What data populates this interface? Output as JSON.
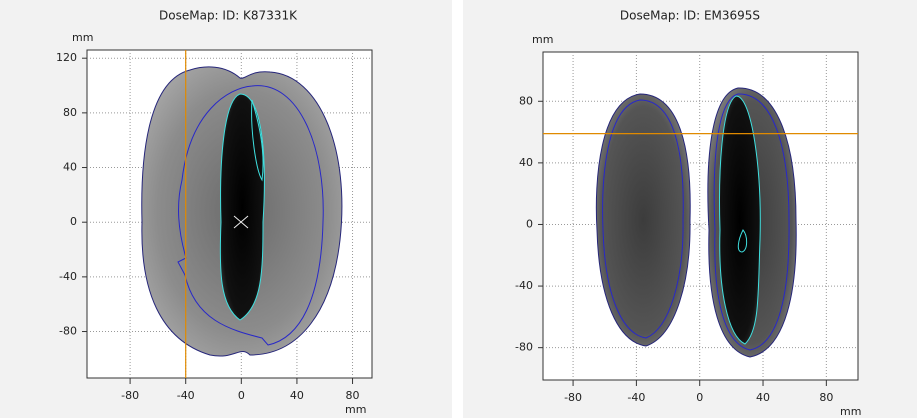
{
  "chart_data": [
    {
      "type": "image",
      "title": "DoseMap: ID: K87331K",
      "xlabel": "mm",
      "ylabel": "mm",
      "xlim": [
        -111,
        94
      ],
      "ylim": [
        -114,
        126
      ],
      "xticks": [
        -80,
        -40,
        0,
        40,
        80
      ],
      "yticks": [
        -80,
        -40,
        0,
        40,
        80,
        120
      ],
      "cursor_x": -40,
      "cursor_color": "#e08a00",
      "grid": true
    },
    {
      "type": "image",
      "title": "DoseMap: ID: EM3695S",
      "xlabel": "mm",
      "ylabel": "mm",
      "xlim": [
        -99,
        100
      ],
      "ylim": [
        -101,
        112
      ],
      "xticks": [
        -80,
        -40,
        0,
        40,
        80
      ],
      "yticks": [
        -80,
        -40,
        0,
        40,
        80
      ],
      "cursor_y": 59,
      "cursor_color": "#e08a00",
      "grid": true
    }
  ]
}
